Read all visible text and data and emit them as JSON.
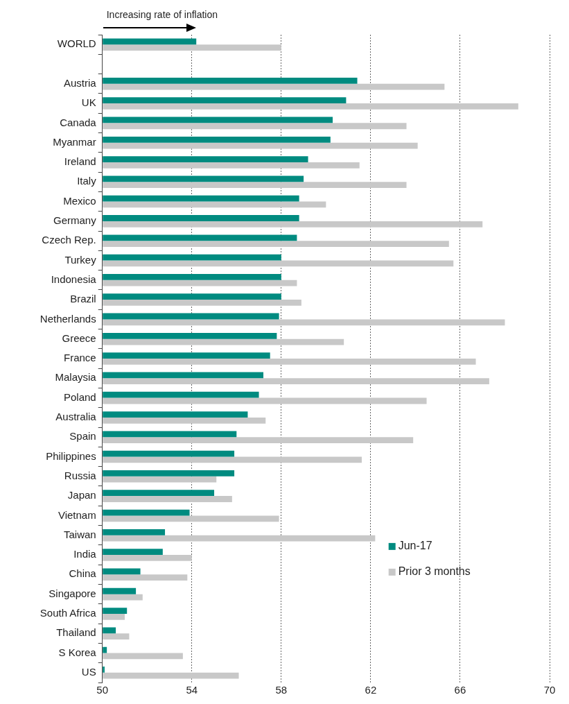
{
  "chart_data": {
    "type": "bar",
    "orientation": "horizontal",
    "annotations": [
      "Increasing rate of inflation"
    ],
    "categories": [
      "WORLD",
      null,
      "Austria",
      "UK",
      "Canada",
      "Myanmar",
      "Ireland",
      "Italy",
      "Mexico",
      "Germany",
      "Czech Rep.",
      "Turkey",
      "Indonesia",
      "Brazil",
      "Netherlands",
      "Greece",
      "France",
      "Malaysia",
      "Poland",
      "Australia",
      "Spain",
      "Philippines",
      "Russia",
      "Japan",
      "Vietnam",
      "Taiwan",
      "India",
      "China",
      "Singapore",
      "South Africa",
      "Thailand",
      "S Korea",
      "US"
    ],
    "series": [
      {
        "name": "Jun-17",
        "color": "#008b80",
        "values": [
          54.2,
          null,
          61.4,
          60.9,
          60.3,
          60.2,
          59.2,
          59.0,
          58.8,
          58.8,
          58.7,
          58.0,
          58.0,
          58.0,
          57.9,
          57.8,
          57.5,
          57.2,
          57.0,
          56.5,
          56.0,
          55.9,
          55.9,
          55.0,
          53.9,
          52.8,
          52.7,
          51.7,
          51.5,
          51.1,
          50.6,
          50.2,
          50.1
        ]
      },
      {
        "name": "Prior 3 months",
        "color": "#c8c8c8",
        "values": [
          58.0,
          null,
          65.3,
          68.6,
          63.6,
          64.1,
          61.5,
          63.6,
          60.0,
          67.0,
          65.5,
          65.7,
          58.7,
          58.9,
          68.0,
          60.8,
          66.7,
          67.3,
          64.5,
          57.3,
          63.9,
          61.6,
          55.1,
          55.8,
          57.9,
          62.2,
          54.0,
          53.8,
          51.8,
          51.0,
          51.2,
          53.6,
          56.1
        ]
      }
    ],
    "xlim": [
      50,
      70
    ],
    "xticks": [
      50,
      54,
      58,
      62,
      66,
      70
    ],
    "grid": "x",
    "legend": "bottom right"
  }
}
